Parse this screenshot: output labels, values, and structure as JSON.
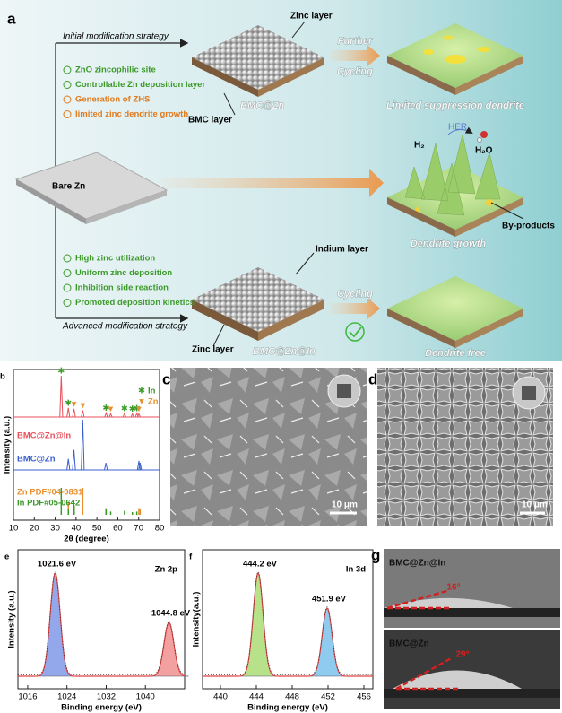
{
  "panel_a": {
    "label": "a",
    "initial_strategy": "Initial modification strategy",
    "zinc_layer_top": "Zinc layer",
    "bmc_layer": "BMC layer",
    "bmc_zn": "BMC@Zn",
    "initial_points": [
      {
        "text": "ZnO zincophilic site",
        "color": "#3c9a2a"
      },
      {
        "text": "Controllable Zn deposition layer",
        "color": "#3c9a2a"
      },
      {
        "text": "Generation of ZHS",
        "color": "#e07a1e"
      },
      {
        "text": "limited zinc dendrite growth",
        "color": "#e07a1e"
      }
    ],
    "further": "Further",
    "cycling_top": "Cycling",
    "limited": "Limited suppression dendrite",
    "bare_zn": "Bare Zn",
    "her": "HER",
    "h2": "H₂",
    "h2o": "H₂O",
    "byproducts": "By-products",
    "dendrite_growth": "Dendrite growth",
    "advanced_points": [
      {
        "text": "High zinc utilization",
        "color": "#3c9a2a"
      },
      {
        "text": "Uniform zinc deposition",
        "color": "#3c9a2a"
      },
      {
        "text": "Inhibition side reaction",
        "color": "#3c9a2a"
      },
      {
        "text": "Promoted deposition kinetics",
        "color": "#3c9a2a"
      }
    ],
    "advanced_strategy": "Advanced modification strategy",
    "indium_layer": "Indium layer",
    "zinc_layer_bottom": "Zinc layer",
    "bmc_zn_in": "BMC@Zn@In",
    "cycling_bottom": "Cycling",
    "dendrite_free": "Dendrite free"
  },
  "chart_data": [
    {
      "type": "xrd",
      "label": "b",
      "xlabel": "2θ (degree)",
      "ylabel": "Intensity (a.u.)",
      "xlim": [
        10,
        80
      ],
      "xticks": [
        10,
        20,
        30,
        40,
        50,
        60,
        70,
        80
      ],
      "legend": [
        {
          "name": "In",
          "color": "#3c9a2a"
        },
        {
          "name": "Zn",
          "color": "#e8902e"
        }
      ],
      "series": [
        {
          "name": "BMC@Zn@In",
          "color": "#e8505b",
          "style": "spectrum",
          "x": [
            32.9,
            36.3,
            39.0,
            43.2,
            54.4,
            56.6,
            63.2,
            67.0,
            69.1,
            70.1
          ],
          "values": [
            100,
            22,
            20,
            16,
            10,
            8,
            9,
            8,
            9,
            8
          ],
          "phase": [
            "In",
            "In",
            "Zn",
            "Zn",
            "In",
            "Zn",
            "In",
            "In",
            "In",
            "Zn"
          ]
        },
        {
          "name": "BMC@Zn",
          "color": "#3a5fcd",
          "style": "spectrum",
          "x": [
            36.3,
            39.0,
            43.2,
            54.3,
            70.1,
            70.7
          ],
          "values": [
            22,
            40,
            100,
            14,
            18,
            14
          ]
        },
        {
          "name": "Zn PDF#04-0831",
          "color": "#e8902e",
          "style": "stick",
          "x": [
            36.3,
            39.0,
            43.2,
            54.3,
            70.1,
            70.7
          ],
          "values": [
            45,
            30,
            100,
            25,
            25,
            20
          ]
        },
        {
          "name": "In PDF#05-0642",
          "color": "#3c9a2a",
          "style": "stick",
          "x": [
            32.9,
            36.3,
            39.1,
            54.4,
            56.6,
            63.2,
            67.0,
            69.1
          ],
          "values": [
            100,
            20,
            35,
            22,
            12,
            15,
            10,
            12
          ]
        }
      ]
    },
    {
      "type": "xps",
      "label": "e",
      "name": "Zn 2p",
      "xlabel": "Binding energy (eV)",
      "ylabel": "Intensity (a.u.)",
      "xlim": [
        1014,
        1048
      ],
      "xticks": [
        1016,
        1024,
        1032,
        1040
      ],
      "fit_color": "#e04040",
      "peaks": [
        {
          "x": 1021.6,
          "label": "1021.6 eV",
          "height": 100,
          "fill": "#93a8ea"
        },
        {
          "x": 1044.8,
          "label": "1044.8 eV",
          "height": 52,
          "fill": "#f2a0a0"
        }
      ]
    },
    {
      "type": "xps",
      "label": "f",
      "name": "In 3d",
      "xlabel": "Binding energy (eV)",
      "ylabel": "Intensity(a.u.)",
      "xlim": [
        438,
        457
      ],
      "xticks": [
        440,
        444,
        448,
        452,
        456
      ],
      "fit_color": "#e04040",
      "peaks": [
        {
          "x": 444.2,
          "label": "444.2 eV",
          "height": 100,
          "fill": "#b8e28a"
        },
        {
          "x": 451.9,
          "label": "451.9 eV",
          "height": 66,
          "fill": "#8ecbee"
        }
      ]
    }
  ],
  "panel_c": {
    "label": "c",
    "scale_bar": "10 μm"
  },
  "panel_d": {
    "label": "d",
    "scale_bar": "10 μm"
  },
  "panel_g": {
    "label": "g",
    "samples": [
      {
        "name": "BMC@Zn@In",
        "angle": 16,
        "angle_label": "16°"
      },
      {
        "name": "BMC@Zn",
        "angle": 29,
        "angle_label": "29°"
      }
    ]
  }
}
